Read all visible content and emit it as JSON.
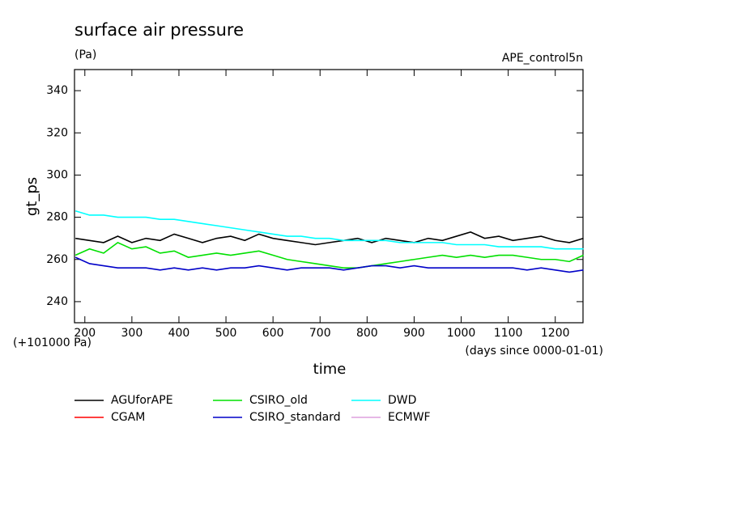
{
  "chart_data": {
    "type": "line",
    "title": "surface air pressure",
    "subtitle": "(Pa)",
    "annotations": [
      "APE_control5n",
      "(+101000 Pa)",
      "(days since 0000-01-01)"
    ],
    "xlabel": "time",
    "ylabel": "gt_ps",
    "x": [
      180,
      210,
      240,
      270,
      300,
      330,
      360,
      390,
      420,
      450,
      480,
      510,
      540,
      570,
      600,
      630,
      660,
      690,
      720,
      750,
      780,
      810,
      840,
      870,
      900,
      930,
      960,
      990,
      1020,
      1050,
      1080,
      1110,
      1140,
      1170,
      1200,
      1230,
      1260
    ],
    "xlim": [
      178,
      1259
    ],
    "xticks": [
      200,
      300,
      400,
      500,
      600,
      700,
      800,
      900,
      1000,
      1100,
      1200
    ],
    "ylim": [
      230,
      350
    ],
    "yticks": [
      240,
      260,
      280,
      300,
      320,
      340
    ],
    "legend": "bottom",
    "series": [
      {
        "name": "AGUforAPE",
        "color": "#000000",
        "values": [
          270,
          269,
          268,
          271,
          268,
          270,
          269,
          272,
          270,
          268,
          270,
          271,
          269,
          272,
          270,
          269,
          268,
          267,
          268,
          269,
          270,
          268,
          270,
          269,
          268,
          270,
          269,
          271,
          273,
          270,
          271,
          269,
          270,
          271,
          269,
          268,
          270
        ]
      },
      {
        "name": "CGAM",
        "color": "#ff0000",
        "values": [
          null,
          null,
          null,
          null,
          null,
          null,
          null,
          null,
          null,
          null,
          null,
          null,
          null,
          null,
          null,
          null,
          null,
          null,
          null,
          null,
          null,
          null,
          null,
          null,
          null,
          null,
          null,
          null,
          null,
          null,
          null,
          null,
          null,
          null,
          null,
          null,
          null
        ]
      },
      {
        "name": "CSIRO_old",
        "color": "#00e000",
        "values": [
          262,
          265,
          263,
          268,
          265,
          266,
          263,
          264,
          261,
          262,
          263,
          262,
          263,
          264,
          262,
          260,
          259,
          258,
          257,
          256,
          256,
          257,
          258,
          259,
          260,
          261,
          262,
          261,
          262,
          261,
          262,
          262,
          261,
          260,
          260,
          259,
          262
        ]
      },
      {
        "name": "CSIRO_standard",
        "color": "#0000c8",
        "values": [
          261,
          258,
          257,
          256,
          256,
          256,
          255,
          256,
          255,
          256,
          255,
          256,
          256,
          257,
          256,
          255,
          256,
          256,
          256,
          255,
          256,
          257,
          257,
          256,
          257,
          256,
          256,
          256,
          256,
          256,
          256,
          256,
          255,
          256,
          255,
          254,
          255
        ]
      },
      {
        "name": "DWD",
        "color": "#00ffff",
        "values": [
          283,
          281,
          281,
          280,
          280,
          280,
          279,
          279,
          278,
          277,
          276,
          275,
          274,
          273,
          272,
          271,
          271,
          270,
          270,
          269,
          269,
          269,
          269,
          268,
          268,
          268,
          268,
          267,
          267,
          267,
          266,
          266,
          266,
          266,
          265,
          265,
          265
        ]
      },
      {
        "name": "ECMWF",
        "color": "#dda0dd",
        "values": [
          null,
          null,
          null,
          null,
          null,
          null,
          null,
          null,
          null,
          null,
          null,
          null,
          null,
          null,
          null,
          null,
          null,
          null,
          null,
          null,
          null,
          null,
          null,
          null,
          null,
          null,
          null,
          null,
          null,
          null,
          null,
          null,
          null,
          null,
          null,
          null,
          null
        ]
      }
    ]
  }
}
